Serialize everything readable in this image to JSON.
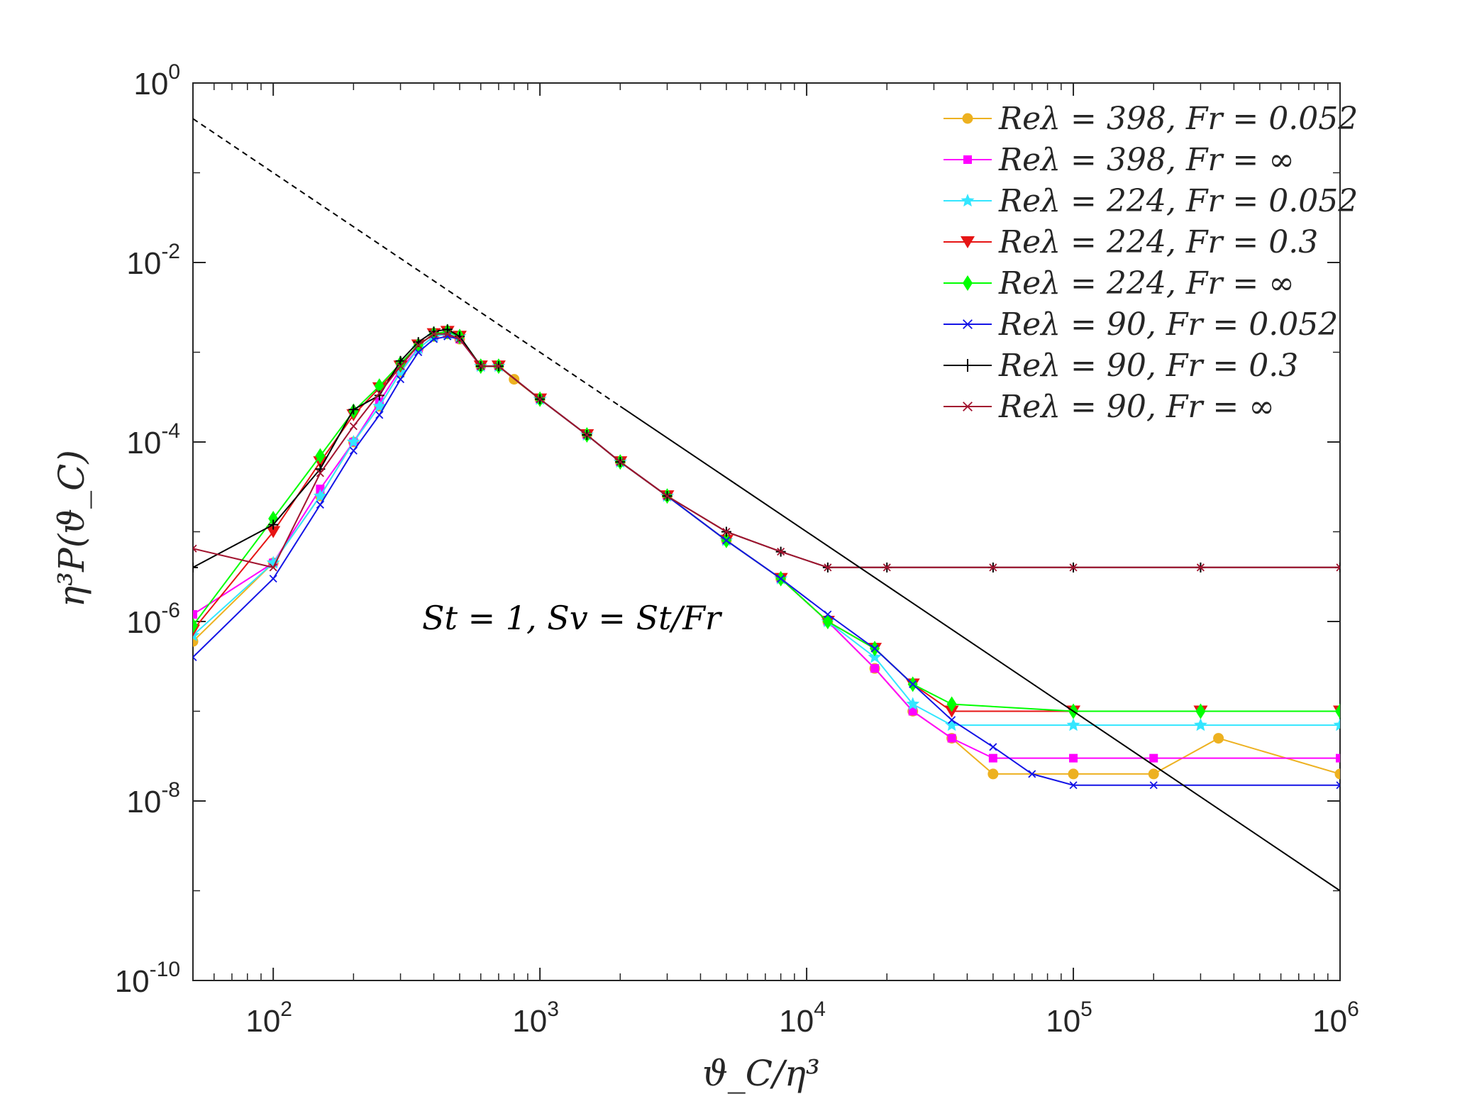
{
  "chart_data": {
    "type": "scatter",
    "xscale": "log",
    "yscale": "log",
    "xlim": [
      50,
      1000000
    ],
    "ylim": [
      1e-10,
      1
    ],
    "xlabel": "ϑ_C/η³",
    "ylabel": "η³P(ϑ_C)",
    "xticks": [
      {
        "base": "10",
        "exp": "2",
        "value": 100
      },
      {
        "base": "10",
        "exp": "3",
        "value": 1000
      },
      {
        "base": "10",
        "exp": "4",
        "value": 10000
      },
      {
        "base": "10",
        "exp": "5",
        "value": 100000
      },
      {
        "base": "10",
        "exp": "6",
        "value": 1000000
      }
    ],
    "yticks": [
      {
        "base": "10",
        "exp": "0",
        "value": 1
      },
      {
        "base": "10",
        "exp": "-2",
        "value": 0.01
      },
      {
        "base": "10",
        "exp": "-4",
        "value": 0.0001
      },
      {
        "base": "10",
        "exp": "-6",
        "value": 1e-06
      },
      {
        "base": "10",
        "exp": "-8",
        "value": 1e-08
      },
      {
        "base": "10",
        "exp": "-10",
        "value": 1e-10
      }
    ],
    "annotation": {
      "text": "St = 1, Sv = St/Fr",
      "color": "#8b1a3e"
    },
    "reference_line": {
      "slope": -2,
      "x": [
        50,
        1000000
      ],
      "y": [
        0.4,
        1e-09
      ],
      "dashed_until": 2000
    },
    "legend_position": "top-right",
    "series": [
      {
        "name": "Re_λ = 398, Fr = 0.052",
        "label": "Reλ = 398, Fr = 0.052",
        "color": "#EDB120",
        "marker": "circle",
        "x": [
          50,
          100,
          150,
          200,
          250,
          300,
          350,
          400,
          450,
          500,
          600,
          700,
          800,
          1000,
          1500,
          2000,
          3000,
          5000,
          8000,
          12000,
          18000,
          25000,
          35000,
          50000,
          100000,
          200000,
          350000,
          1000000
        ],
        "y": [
          6e-07,
          4.5e-06,
          2.5e-05,
          0.0001,
          0.00025,
          0.0006,
          0.0011,
          0.0015,
          0.0016,
          0.0014,
          0.0007,
          0.0007,
          0.0005,
          0.0003,
          0.00012,
          6e-05,
          2.5e-05,
          8e-06,
          3e-06,
          1e-06,
          3e-07,
          1e-07,
          5e-08,
          2e-08,
          2e-08,
          2e-08,
          5e-08,
          2e-08
        ]
      },
      {
        "name": "Re_λ = 398, Fr = ∞",
        "label": "Reλ = 398, Fr = ∞",
        "color": "#FF00FF",
        "marker": "square",
        "x": [
          50,
          100,
          150,
          200,
          250,
          300,
          350,
          400,
          450,
          500,
          600,
          700,
          1000,
          1500,
          2000,
          3000,
          5000,
          8000,
          12000,
          18000,
          25000,
          35000,
          50000,
          100000,
          200000,
          1000000
        ],
        "y": [
          1.2e-06,
          4.5e-06,
          3e-05,
          0.0001,
          0.00028,
          0.00065,
          0.0011,
          0.0015,
          0.0016,
          0.0014,
          0.0007,
          0.0007,
          0.0003,
          0.00012,
          6e-05,
          2.5e-05,
          8e-06,
          3e-06,
          1e-06,
          3e-07,
          1e-07,
          5e-08,
          3e-08,
          3e-08,
          3e-08,
          3e-08
        ]
      },
      {
        "name": "Re_λ = 224, Fr = 0.052",
        "label": "Reλ = 224, Fr = 0.052",
        "color": "#33E6FF",
        "marker": "star",
        "x": [
          50,
          100,
          150,
          200,
          250,
          300,
          350,
          400,
          450,
          500,
          600,
          700,
          1000,
          1500,
          2000,
          3000,
          5000,
          8000,
          12000,
          18000,
          25000,
          35000,
          100000,
          300000,
          1000000
        ],
        "y": [
          7e-07,
          4.5e-06,
          2.5e-05,
          0.0001,
          0.00025,
          0.0006,
          0.0011,
          0.0015,
          0.0016,
          0.0015,
          0.0007,
          0.0007,
          0.0003,
          0.00012,
          6e-05,
          2.5e-05,
          8e-06,
          3e-06,
          1e-06,
          4e-07,
          1.2e-07,
          7e-08,
          7e-08,
          7e-08,
          7e-08
        ]
      },
      {
        "name": "Re_λ = 224, Fr = 0.3",
        "label": "Reλ = 224, Fr = 0.3",
        "color": "#E61414",
        "marker": "triangle-down",
        "x": [
          50,
          100,
          150,
          200,
          250,
          300,
          350,
          400,
          450,
          500,
          600,
          700,
          1000,
          1500,
          2000,
          3000,
          5000,
          8000,
          12000,
          18000,
          25000,
          35000,
          100000,
          300000,
          1000000
        ],
        "y": [
          8e-07,
          1e-05,
          6e-05,
          0.0002,
          0.0004,
          0.0007,
          0.0012,
          0.0016,
          0.0017,
          0.0015,
          0.0007,
          0.0007,
          0.0003,
          0.00012,
          6e-05,
          2.5e-05,
          8e-06,
          3e-06,
          1e-06,
          5e-07,
          2e-07,
          1e-07,
          1e-07,
          1e-07,
          1e-07
        ]
      },
      {
        "name": "Re_λ = 224, Fr = ∞",
        "label": "Reλ = 224, Fr = ∞",
        "color": "#00FF00",
        "marker": "diamond",
        "x": [
          50,
          100,
          150,
          200,
          250,
          300,
          350,
          400,
          450,
          500,
          600,
          700,
          1000,
          1500,
          2000,
          3000,
          5000,
          8000,
          12000,
          18000,
          25000,
          35000,
          100000,
          300000,
          1000000
        ],
        "y": [
          9e-07,
          1.4e-05,
          7e-05,
          0.00022,
          0.00042,
          0.00075,
          0.0012,
          0.0016,
          0.0017,
          0.0015,
          0.0007,
          0.0007,
          0.0003,
          0.00012,
          6e-05,
          2.5e-05,
          8e-06,
          3e-06,
          1e-06,
          5e-07,
          2e-07,
          1.2e-07,
          1e-07,
          1e-07,
          1e-07
        ]
      },
      {
        "name": "Re_λ = 90, Fr = 0.052",
        "label": "Reλ = 90, Fr = 0.052",
        "color": "#1414E6",
        "marker": "x",
        "x": [
          50,
          100,
          150,
          200,
          250,
          300,
          350,
          400,
          450,
          500,
          600,
          700,
          1000,
          1500,
          2000,
          3000,
          5000,
          8000,
          12000,
          18000,
          25000,
          35000,
          50000,
          70000,
          100000,
          200000,
          1000000
        ],
        "y": [
          4e-07,
          3e-06,
          2e-05,
          8e-05,
          0.0002,
          0.0005,
          0.001,
          0.0014,
          0.0015,
          0.0014,
          0.0007,
          0.0007,
          0.0003,
          0.00012,
          6e-05,
          2.5e-05,
          8e-06,
          3e-06,
          1.2e-06,
          5e-07,
          2e-07,
          8e-08,
          4e-08,
          2e-08,
          1.5e-08,
          1.5e-08,
          1.5e-08
        ]
      },
      {
        "name": "Re_λ = 90, Fr = 0.3",
        "label": "Reλ = 90, Fr = 0.3",
        "color": "#000000",
        "marker": "plus",
        "x": [
          50,
          100,
          150,
          200,
          250,
          300,
          350,
          400,
          450,
          500,
          600,
          700,
          1000,
          1500,
          2000,
          3000,
          5000,
          8000,
          12000,
          20000,
          50000,
          100000,
          300000,
          1000000
        ],
        "y": [
          4e-06,
          1.2e-05,
          5e-05,
          0.00023,
          0.00033,
          0.0008,
          0.0013,
          0.0017,
          0.0018,
          0.0015,
          0.0007,
          0.0007,
          0.0003,
          0.00012,
          6e-05,
          2.5e-05,
          1e-05,
          6e-06,
          4e-06,
          4e-06,
          4e-06,
          4e-06,
          4e-06,
          4e-06
        ]
      },
      {
        "name": "Re_λ = 90, Fr = ∞",
        "label": "Reλ = 90, Fr = ∞",
        "color": "#A2142F",
        "marker": "x",
        "x": [
          50,
          100,
          150,
          200,
          250,
          300,
          350,
          400,
          450,
          500,
          600,
          700,
          1000,
          1500,
          2000,
          3000,
          5000,
          8000,
          12000,
          20000,
          50000,
          100000,
          300000,
          1000000
        ],
        "y": [
          6.5e-06,
          4e-06,
          4.5e-05,
          0.00015,
          0.00035,
          0.0007,
          0.0012,
          0.0016,
          0.0016,
          0.0014,
          0.0007,
          0.0007,
          0.0003,
          0.00012,
          6e-05,
          2.5e-05,
          1e-05,
          6e-06,
          4e-06,
          4e-06,
          4e-06,
          4e-06,
          4e-06,
          4e-06
        ]
      }
    ]
  }
}
